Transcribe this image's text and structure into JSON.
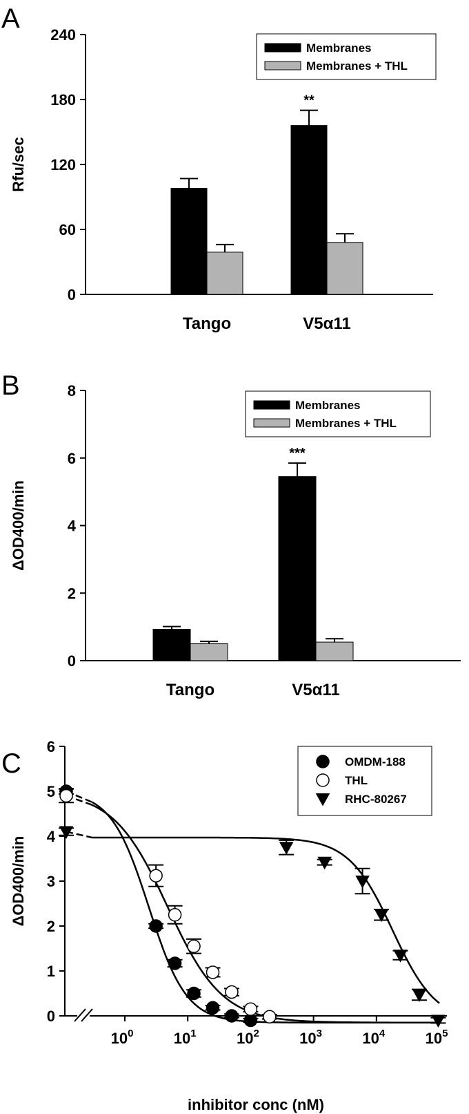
{
  "chart_data": [
    {
      "panel": "A",
      "type": "bar",
      "categories": [
        "Tango",
        "V5α11"
      ],
      "series": [
        {
          "name": "Membranes",
          "color": "#000000",
          "values": [
            98,
            156
          ],
          "errors": [
            9,
            14
          ]
        },
        {
          "name": "Membranes + THL",
          "color": "#b3b3b3",
          "values": [
            39,
            48
          ],
          "errors": [
            7,
            8
          ]
        }
      ],
      "significance": [
        {
          "category": 1,
          "series": 0,
          "label": "**"
        }
      ],
      "ylabel": "Rfu/sec",
      "ylim": [
        0,
        240
      ],
      "yticks": [
        0,
        60,
        120,
        180,
        240
      ],
      "legend_position": "top-right",
      "grid": false
    },
    {
      "panel": "B",
      "type": "bar",
      "categories": [
        "Tango",
        "V5α11"
      ],
      "series": [
        {
          "name": "Membranes",
          "color": "#000000",
          "values": [
            0.93,
            5.45
          ],
          "errors": [
            0.08,
            0.4
          ]
        },
        {
          "name": "Membranes + THL",
          "color": "#b3b3b3",
          "values": [
            0.5,
            0.55
          ],
          "errors": [
            0.07,
            0.1
          ]
        }
      ],
      "significance": [
        {
          "category": 1,
          "series": 0,
          "label": "***"
        }
      ],
      "ylabel": "ΔOD400/min",
      "ylim": [
        0,
        8
      ],
      "yticks": [
        0,
        2,
        4,
        6,
        8
      ],
      "legend_position": "top-right",
      "grid": false
    },
    {
      "panel": "C",
      "type": "scatter",
      "xscale": "log",
      "xlabel": "inhibitor conc (nM)",
      "ylabel": "ΔOD400/min",
      "xlim": [
        0.1,
        100000
      ],
      "ylim": [
        0,
        6
      ],
      "yticks": [
        0,
        1,
        2,
        3,
        4,
        5,
        6
      ],
      "xticks": [
        {
          "base": "10",
          "exp": "0",
          "value": 1
        },
        {
          "base": "10",
          "exp": "1",
          "value": 10
        },
        {
          "base": "10",
          "exp": "2",
          "value": 100
        },
        {
          "base": "10",
          "exp": "3",
          "value": 1000
        },
        {
          "base": "10",
          "exp": "4",
          "value": 10000
        },
        {
          "base": "10",
          "exp": "5",
          "value": 100000
        }
      ],
      "axis_break": true,
      "legend_position": "top-right",
      "grid": false,
      "series": [
        {
          "name": "OMDM-188",
          "marker": "filled-circle",
          "control": {
            "y": 5.0,
            "err": 0.06
          },
          "x": [
            3.125,
            6.25,
            12.5,
            25,
            50,
            100
          ],
          "y": [
            2.0,
            1.17,
            0.5,
            0.18,
            0.0,
            -0.1
          ],
          "err": [
            0.05,
            0.08,
            0.08,
            0.05,
            0.04,
            0.04
          ],
          "fit": {
            "top": 5.0,
            "bottom": -0.15,
            "ec50": 2.4,
            "hill": 1.45
          }
        },
        {
          "name": "THL",
          "marker": "open-circle",
          "control": {
            "y": 4.9,
            "err": 0.15
          },
          "x": [
            3.125,
            6.25,
            12.5,
            25,
            50,
            100,
            200
          ],
          "y": [
            3.12,
            2.25,
            1.55,
            0.97,
            0.53,
            0.15,
            -0.02
          ],
          "err": [
            0.24,
            0.2,
            0.16,
            0.1,
            0.08,
            0.06,
            0.05
          ],
          "fit": {
            "top": 5.0,
            "bottom": -0.15,
            "ec50": 4.8,
            "hill": 1.0
          }
        },
        {
          "name": "RHC-80267",
          "marker": "filled-triangle-down",
          "control": {
            "y": 4.1,
            "err": 0.08
          },
          "x": [
            370,
            1500,
            6000,
            12000,
            24000,
            48000,
            96000
          ],
          "y": [
            3.75,
            3.42,
            3.0,
            2.25,
            1.35,
            0.47,
            -0.1
          ],
          "err": [
            0.16,
            0.06,
            0.28,
            0.12,
            0.1,
            0.12,
            0.06
          ],
          "fit": {
            "top": 3.97,
            "bottom": -0.15,
            "ec50": 18000,
            "hill": 1.25
          }
        }
      ]
    }
  ]
}
